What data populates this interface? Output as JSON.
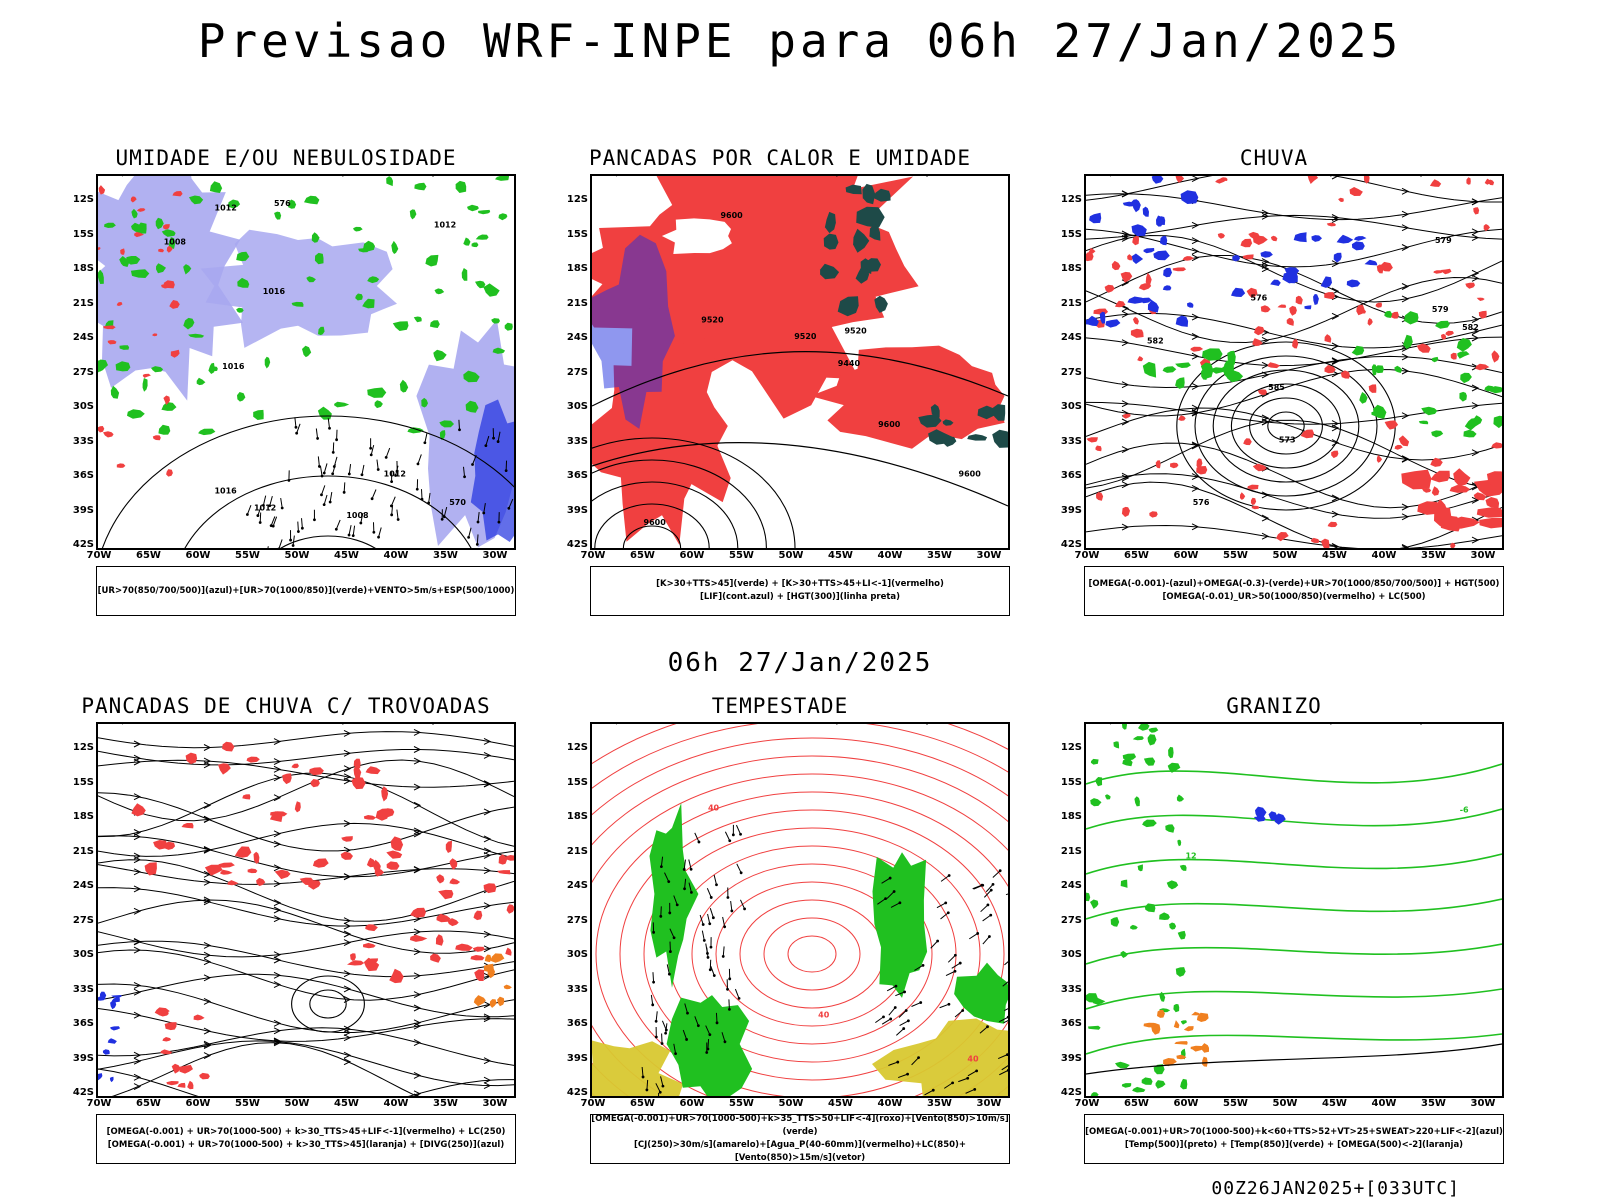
{
  "title": "Previsao WRF-INPE  para 06h 27/Jan/2025",
  "middle_title": "06h 27/Jan/2025",
  "footer": "00Z26JAN2025+[033UTC]",
  "axes": {
    "lat_labels": [
      "12S",
      "15S",
      "18S",
      "21S",
      "24S",
      "27S",
      "30S",
      "33S",
      "36S",
      "39S",
      "42S"
    ],
    "lon_labels": [
      "70W",
      "65W",
      "60W",
      "55W",
      "50W",
      "45W",
      "40W",
      "35W",
      "30W"
    ]
  },
  "colors": {
    "red": "#f04040",
    "green": "#20c020",
    "blue": "#2030e0",
    "lavender": "#a8a8f0",
    "darkteal": "#1e4a48",
    "yellow": "#d8c830",
    "orange": "#f08020"
  },
  "panels": [
    {
      "id": "umidade",
      "title": "UMIDADE E/OU NEBULOSIDADE",
      "legend": [
        "[UR>70(850/700/500)](azul)+[UR>70(1000/850)](verde)+VENTO>5m/s+ESP(500/1000)"
      ],
      "contour_labels": [
        "1012",
        "1008",
        "1016",
        "1012",
        "1012",
        "1008",
        "1016",
        "570",
        "576",
        "1016",
        "1012"
      ]
    },
    {
      "id": "pancadas_calor",
      "title": "PANCADAS POR CALOR E UMIDADE",
      "legend": [
        "[K>30+TTS>45](verde) + [K>30+TTS>45+LI<-1](vermelho)",
        "[LIF](cont.azul) + [HGT(300)](linha preta)"
      ],
      "contour_labels": [
        "9600",
        "9600",
        "9600",
        "9520",
        "9600",
        "9520",
        "9440",
        "9520"
      ]
    },
    {
      "id": "chuva",
      "title": "CHUVA",
      "legend": [
        "[OMEGA(-0.001)-(azul)+OMEGA(-0.3)-(verde)+UR>70(1000/850/700/500)] + HGT(500)",
        "[OMEGA(-0.01)_UR>50(1000/850)(vermelho) + LC(500)"
      ],
      "contour_labels": [
        "582",
        "585",
        "582",
        "579",
        "576",
        "573",
        "576",
        "579"
      ]
    },
    {
      "id": "pancadas_trovoadas",
      "title": "PANCADAS DE CHUVA C/ TROVOADAS",
      "legend": [
        "[OMEGA(-0.001) + UR>70(1000-500) + k>30_TTS>45+LIF<-1](vermelho) + LC(250)",
        "[OMEGA(-0.001) + UR>70(1000-500) + k>30_TTS>45](laranja) + [DIVG(250)](azul)"
      ],
      "contour_labels": []
    },
    {
      "id": "tempestade",
      "title": "TEMPESTADE",
      "legend": [
        "[OMEGA(-0.001)+UR>70(1000-500)+k>35_TTS>50+LIF<-4](roxo)+[Vento(850)>10m/s](verde)",
        "[CJ(250)>30m/s](amarelo)+[Agua_P(40-60mm)](vermelho)+LC(850)+[Vento(850)>15m/s](vetor)"
      ],
      "contour_labels": [
        "40",
        "40",
        "40"
      ]
    },
    {
      "id": "granizo",
      "title": "GRANIZO",
      "legend": [
        "[OMEGA(-0.001)+UR>70(1000-500)+k<60+TTS>52+VT>25+SWEAT>220+LIF<-2](azul)",
        "[Temp(500)](preto) + [Temp(850)](verde) + [OMEGA(500)<-2](laranja)"
      ],
      "contour_labels": [
        "-6",
        "12"
      ]
    }
  ]
}
